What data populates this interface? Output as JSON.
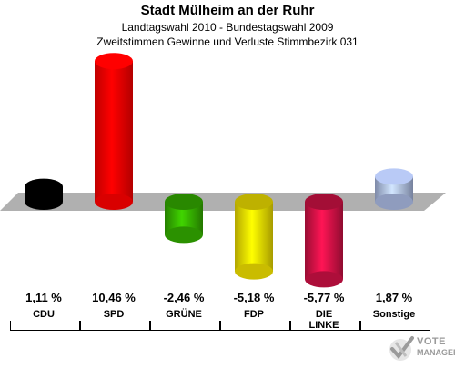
{
  "header": {
    "title": "Stadt Mülheim an der Ruhr",
    "subtitle1": "Landtagswahl 2010 - Bundestagswahl 2009",
    "subtitle2": "Zweitstimmen Gewinne und Verluste Stimmbezirk 031"
  },
  "chart_data": {
    "type": "bar",
    "categories": [
      "CDU",
      "SPD",
      "GRÜNE",
      "FDP",
      "DIE LINKE",
      "Sonstige"
    ],
    "category_lines": [
      [
        "CDU"
      ],
      [
        "SPD"
      ],
      [
        "GRÜNE"
      ],
      [
        "FDP"
      ],
      [
        "DIE",
        "LINKE"
      ],
      [
        "Sonstige"
      ]
    ],
    "values": [
      1.11,
      10.46,
      -2.46,
      -5.18,
      -5.77,
      1.87
    ],
    "value_labels": [
      "1,11 %",
      "10,46 %",
      "-2,46 %",
      "-5,18 %",
      "-5,77 %",
      "1,87 %"
    ],
    "colors": [
      "#000000",
      "#ff0000",
      "#33aa00",
      "#eedd00",
      "#cc1144",
      "#a8b8e0"
    ],
    "baseline_color": "#b0b0b0",
    "grid": false,
    "legend": "none"
  },
  "logo": {
    "line1": "VOTE",
    "line2": "MANAGER"
  }
}
